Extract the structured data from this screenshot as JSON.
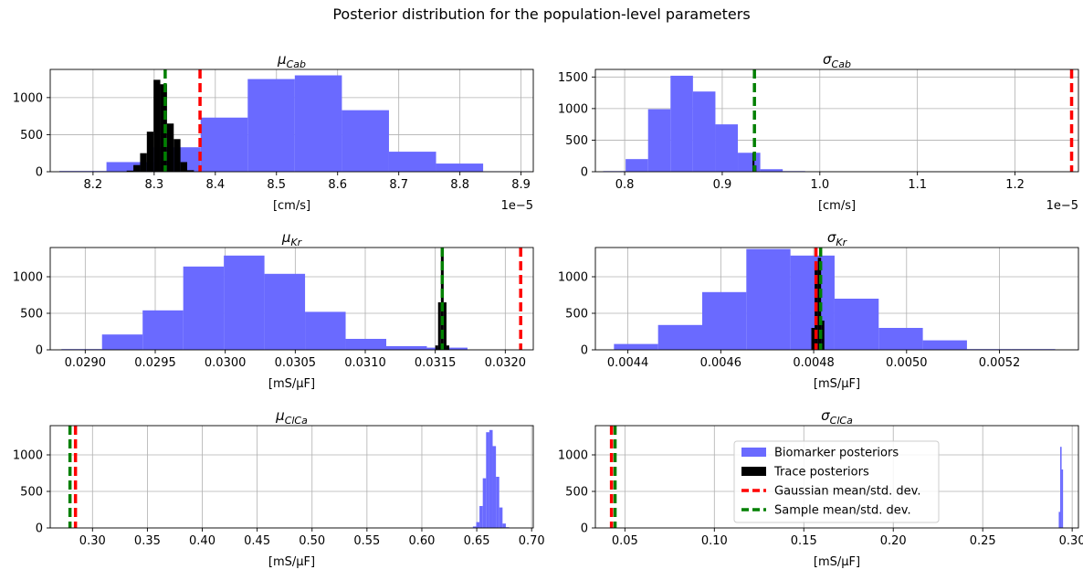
{
  "figure_title": "Posterior distribution for the population-level parameters",
  "colors": {
    "biomarker": "#6a6aff",
    "trace": "#000000",
    "gaussian": "#ff0000",
    "sample": "#008000",
    "grid": "#b0b0b0"
  },
  "chart_data": [
    {
      "type": "histogram",
      "title_base": "μ",
      "title_sub": "Cab",
      "xlabel": "[cm/s]",
      "offset": "1e−5",
      "xlim": [
        8.13,
        8.92
      ],
      "ylim": [
        0,
        1380
      ],
      "xticks": [
        8.2,
        8.3,
        8.4,
        8.5,
        8.6,
        8.7,
        8.8,
        8.9
      ],
      "xtick_labels": [
        "8.2",
        "8.3",
        "8.4",
        "8.5",
        "8.6",
        "8.7",
        "8.8",
        "8.9"
      ],
      "yticks": [
        0,
        500,
        1000
      ],
      "bio_edges": [
        8.145,
        8.222,
        8.299,
        8.376,
        8.453,
        8.53,
        8.607,
        8.684,
        8.761,
        8.838,
        8.915
      ],
      "bio_counts": [
        10,
        130,
        330,
        730,
        1250,
        1300,
        830,
        270,
        110,
        5
      ],
      "trace_edges": [
        8.255,
        8.266,
        8.277,
        8.288,
        8.299,
        8.31,
        8.321,
        8.332,
        8.343,
        8.354,
        8.365
      ],
      "trace_counts": [
        15,
        90,
        250,
        540,
        1240,
        1180,
        650,
        440,
        130,
        20
      ],
      "gaussian_line": 8.375,
      "sample_line": 8.318
    },
    {
      "type": "histogram",
      "title_base": "σ",
      "title_sub": "Cab",
      "xlabel": "[cm/s]",
      "offset": "1e−5",
      "xlim": [
        0.77,
        1.265
      ],
      "ylim": [
        0,
        1620
      ],
      "xticks": [
        0.8,
        0.9,
        1.0,
        1.1,
        1.2
      ],
      "xtick_labels": [
        "0.8",
        "0.9",
        "1.0",
        "1.1",
        "1.2"
      ],
      "yticks": [
        0,
        500,
        1000,
        1500
      ],
      "bio_edges": [
        0.778,
        0.801,
        0.824,
        0.847,
        0.87,
        0.893,
        0.916,
        0.939,
        0.962,
        0.985
      ],
      "bio_counts": [
        10,
        200,
        990,
        1520,
        1270,
        750,
        300,
        40,
        10
      ],
      "trace_edges": [
        0.931,
        0.933,
        0.935
      ],
      "trace_counts": [
        300,
        100
      ],
      "gaussian_line": 1.258,
      "sample_line": 0.933
    },
    {
      "type": "histogram",
      "title_base": "μ",
      "title_sub": "Kr",
      "xlabel": "[mS/μF]",
      "offset": "",
      "xlim": [
        0.02875,
        0.0322
      ],
      "ylim": [
        0,
        1400
      ],
      "xticks": [
        0.029,
        0.0295,
        0.03,
        0.0305,
        0.031,
        0.0315,
        0.032
      ],
      "xtick_labels": [
        "0.0290",
        "0.0295",
        "0.0300",
        "0.0305",
        "0.0310",
        "0.0315",
        "0.0320"
      ],
      "yticks": [
        0,
        500,
        1000
      ],
      "bio_edges": [
        0.02883,
        0.02912,
        0.02941,
        0.0297,
        0.02999,
        0.03028,
        0.03057,
        0.03086,
        0.03115,
        0.03144,
        0.03173
      ],
      "bio_counts": [
        10,
        210,
        540,
        1140,
        1290,
        1040,
        520,
        150,
        50,
        30
      ],
      "trace_edges": [
        0.0315,
        0.03152,
        0.03154,
        0.03156,
        0.03158,
        0.0316
      ],
      "trace_counts": [
        60,
        650,
        1380,
        650,
        60
      ],
      "gaussian_line": 0.03211,
      "sample_line": 0.03155
    },
    {
      "type": "histogram",
      "title_base": "σ",
      "title_sub": "Kr",
      "xlabel": "[mS/μF]",
      "offset": "",
      "xlim": [
        0.00433,
        0.00537
      ],
      "ylim": [
        0,
        1400
      ],
      "xticks": [
        0.0044,
        0.0046,
        0.0048,
        0.005,
        0.0052
      ],
      "xtick_labels": [
        "0.0044",
        "0.0046",
        "0.0048",
        "0.0050",
        "0.0052"
      ],
      "yticks": [
        0,
        500,
        1000
      ],
      "bio_edges": [
        0.00437,
        0.004465,
        0.00456,
        0.004655,
        0.00475,
        0.004845,
        0.00494,
        0.005035,
        0.00513,
        0.005225,
        0.00532
      ],
      "bio_counts": [
        80,
        340,
        790,
        1380,
        1290,
        700,
        300,
        130,
        10,
        10
      ],
      "trace_edges": [
        0.004795,
        0.004802,
        0.004809,
        0.004816,
        0.004823
      ],
      "trace_counts": [
        300,
        1100,
        1260,
        400
      ],
      "gaussian_line": 0.004805,
      "sample_line": 0.004815
    },
    {
      "type": "histogram",
      "title_base": "μ",
      "title_sub": "ClCa",
      "xlabel": "[mS/μF]",
      "offset": "",
      "xlim": [
        0.2615,
        0.7015
      ],
      "ylim": [
        0,
        1400
      ],
      "xticks": [
        0.3,
        0.35,
        0.4,
        0.45,
        0.5,
        0.55,
        0.6,
        0.65,
        0.7
      ],
      "xtick_labels": [
        "0.30",
        "0.35",
        "0.40",
        "0.45",
        "0.50",
        "0.55",
        "0.60",
        "0.65",
        "0.70"
      ],
      "yticks": [
        0,
        500,
        1000
      ],
      "bio_edges": [
        0.6465,
        0.6495,
        0.6525,
        0.6555,
        0.6585,
        0.6615,
        0.6645,
        0.6675,
        0.6705,
        0.6735,
        0.6765,
        0.6795
      ],
      "bio_counts": [
        20,
        80,
        300,
        680,
        1310,
        1340,
        1120,
        700,
        280,
        60,
        10
      ],
      "trace_edges": [],
      "trace_counts": [],
      "gaussian_line": 0.2845,
      "sample_line": 0.2795
    },
    {
      "type": "histogram",
      "title_base": "σ",
      "title_sub": "ClCa",
      "xlabel": "[mS/μF]",
      "offset": "",
      "xlim": [
        0.0335,
        0.3035
      ],
      "ylim": [
        0,
        1400
      ],
      "xticks": [
        0.05,
        0.1,
        0.15,
        0.2,
        0.25,
        0.3
      ],
      "xtick_labels": [
        "0.05",
        "0.10",
        "0.15",
        "0.20",
        "0.25",
        "0.30"
      ],
      "yticks": [
        0,
        500,
        1000
      ],
      "bio_edges": [
        0.2925,
        0.2933,
        0.2941,
        0.2949
      ],
      "bio_counts": [
        220,
        1110,
        800
      ],
      "trace_edges": [],
      "trace_counts": [],
      "gaussian_line": 0.0425,
      "sample_line": 0.0445,
      "legend": {
        "position": "upper-center",
        "entries": [
          "Biomarker posteriors",
          "Trace posteriors",
          "Gaussian mean/std. dev.",
          "Sample mean/std. dev."
        ]
      }
    }
  ]
}
